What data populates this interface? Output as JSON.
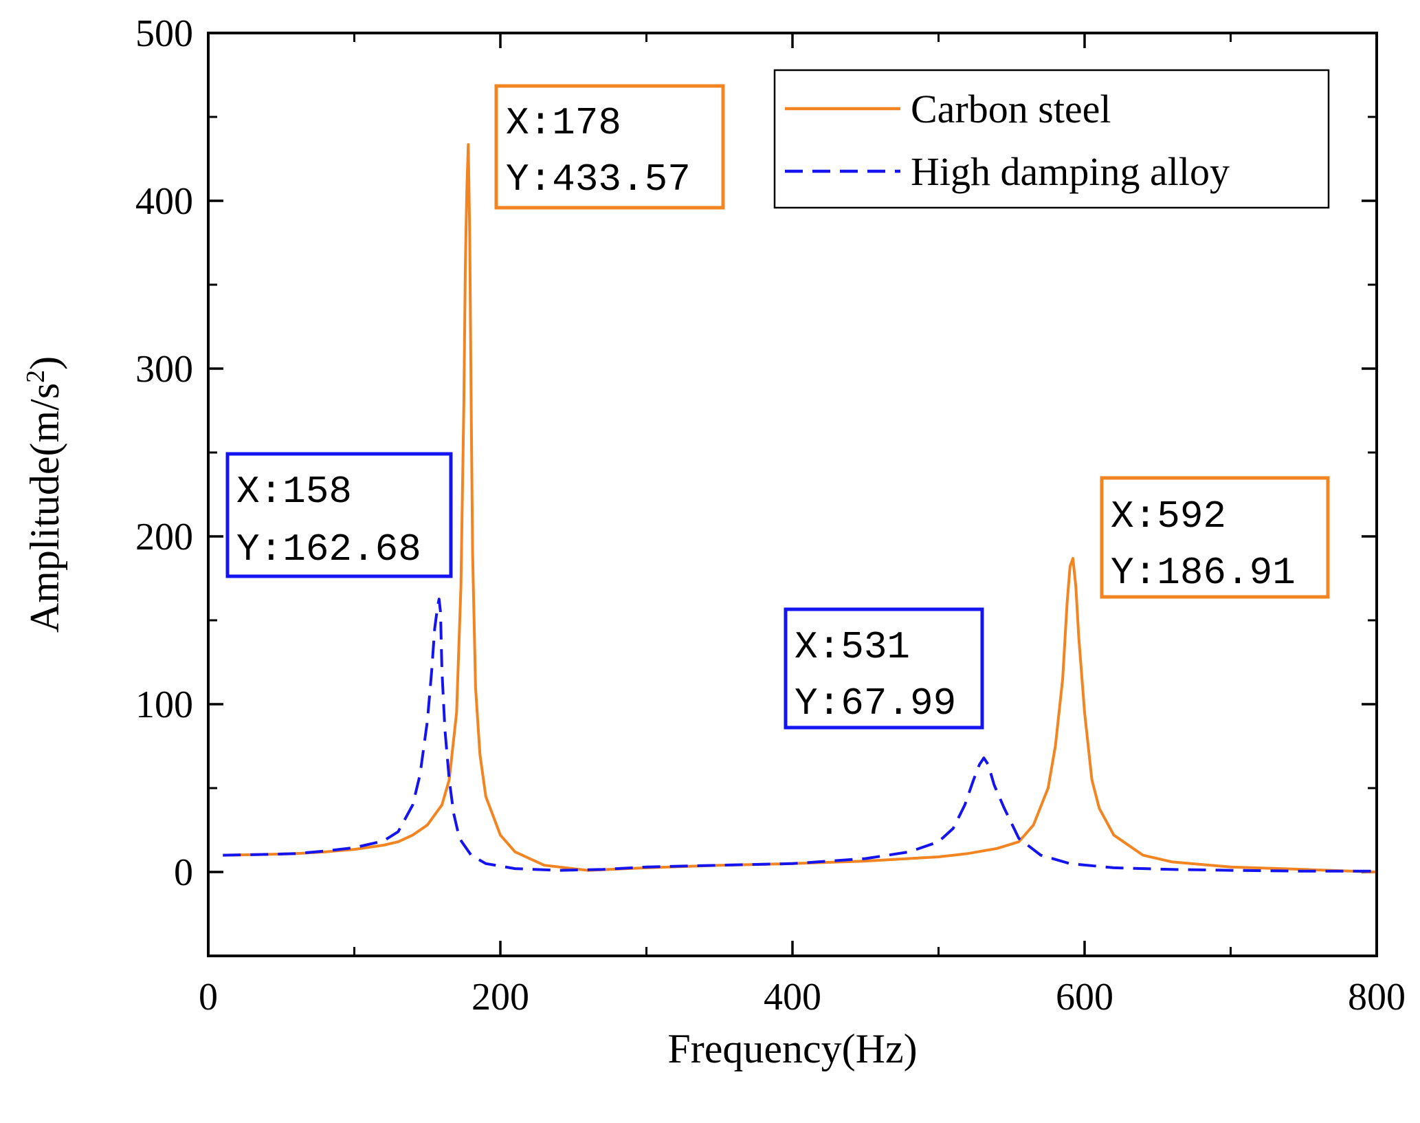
{
  "chart_data": {
    "type": "line",
    "title": "",
    "xlabel": "Frequency(Hz)",
    "ylabel_main": "Amplitude(m/s",
    "ylabel_sup": "2",
    "ylabel_close": ")",
    "xlim": [
      0,
      800
    ],
    "ylim": [
      -50,
      500
    ],
    "xticks": [
      0,
      200,
      400,
      600,
      800
    ],
    "xtick_labels": [
      "0",
      "200",
      "400",
      "600",
      "800"
    ],
    "xminor": [
      100,
      300,
      500,
      700
    ],
    "yticks": [
      0,
      100,
      200,
      300,
      400,
      500
    ],
    "ytick_labels": [
      "0",
      "100",
      "200",
      "300",
      "400",
      "500"
    ],
    "yminor": [
      -50,
      50,
      150,
      250,
      350,
      450
    ],
    "legend_position": "top-right",
    "series": [
      {
        "name": "Carbon steel",
        "color": "#F28522",
        "dash": "solid",
        "x": [
          10,
          40,
          60,
          80,
          100,
          120,
          130,
          140,
          150,
          160,
          165,
          170,
          173,
          175,
          176,
          177,
          178,
          179,
          180,
          181,
          183,
          186,
          190,
          200,
          210,
          230,
          260,
          300,
          350,
          400,
          450,
          500,
          520,
          540,
          555,
          565,
          575,
          580,
          585,
          588,
          590,
          592,
          594,
          596,
          600,
          605,
          610,
          620,
          640,
          660,
          700,
          750,
          800
        ],
        "y": [
          10,
          10.5,
          11,
          12,
          13.5,
          16,
          18,
          22,
          28,
          40,
          55,
          95,
          170,
          280,
          360,
          405,
          433.57,
          380,
          280,
          190,
          110,
          70,
          45,
          22,
          12,
          4,
          1,
          2.5,
          4,
          5,
          6.5,
          9,
          11,
          14,
          18,
          28,
          50,
          75,
          115,
          160,
          182,
          186.91,
          170,
          140,
          95,
          55,
          38,
          22,
          10,
          6,
          3,
          1.5,
          0
        ]
      },
      {
        "name": "High damping alloy",
        "color": "#1414F0",
        "dash": "dashed",
        "x": [
          10,
          40,
          60,
          80,
          100,
          120,
          130,
          140,
          145,
          150,
          153,
          155,
          157,
          158,
          159,
          160,
          162,
          165,
          168,
          172,
          180,
          190,
          210,
          240,
          270,
          300,
          350,
          400,
          450,
          480,
          500,
          510,
          518,
          524,
          528,
          531,
          534,
          538,
          545,
          555,
          570,
          590,
          620,
          660,
          700,
          750,
          800
        ],
        "y": [
          10,
          10.5,
          11,
          12.5,
          14.5,
          18.5,
          24,
          40,
          58,
          90,
          120,
          145,
          158,
          162.68,
          155,
          120,
          85,
          55,
          35,
          20,
          10,
          5,
          2,
          1,
          1.5,
          3,
          4,
          5,
          8,
          12,
          18,
          26,
          40,
          55,
          64,
          67.99,
          64,
          52,
          38,
          20,
          10,
          5,
          2.5,
          1.5,
          1,
          0.5,
          0.5
        ]
      }
    ],
    "annotations": [
      {
        "series": 0,
        "x_label": "X:178",
        "y_label": "Y:433.57",
        "color": "#F28522"
      },
      {
        "series": 1,
        "x_label": "X:158",
        "y_label": "Y:162.68",
        "color": "#1414F0"
      },
      {
        "series": 0,
        "x_label": "X:592",
        "y_label": "Y:186.91",
        "color": "#F28522"
      },
      {
        "series": 1,
        "x_label": "X:531",
        "y_label": "Y:67.99",
        "color": "#1414F0"
      }
    ]
  }
}
